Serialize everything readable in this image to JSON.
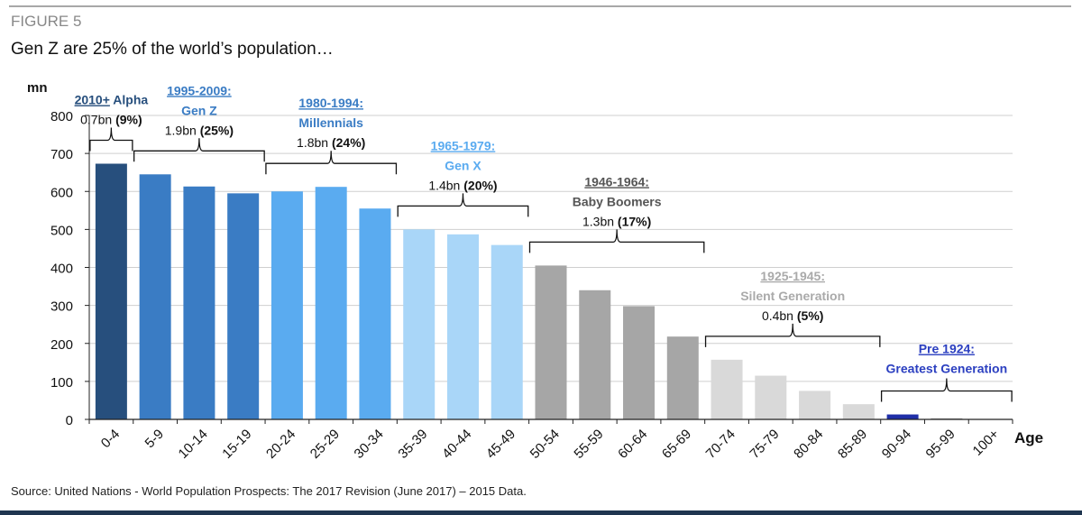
{
  "figure_label": "FIGURE 5",
  "title": "Gen Z are 25% of the world’s population…",
  "source": "Source: United Nations - World Population Prospects: The 2017 Revision (June 2017) – 2015 Data.",
  "chart_data": {
    "type": "bar",
    "ylabel": "mn",
    "xlabel": "Age",
    "ylim": [
      0,
      800
    ],
    "yticks": [
      0,
      100,
      200,
      300,
      400,
      500,
      600,
      700,
      800
    ],
    "grid": true,
    "categories": [
      "0-4",
      "5-9",
      "10-14",
      "15-19",
      "20-24",
      "25-29",
      "30-34",
      "35-39",
      "40-44",
      "45-49",
      "50-54",
      "55-59",
      "60-64",
      "65-69",
      "70-74",
      "75-79",
      "80-84",
      "85-89",
      "90-94",
      "95-99",
      "100+"
    ],
    "values": [
      673,
      645,
      613,
      595,
      600,
      612,
      555,
      500,
      487,
      459,
      405,
      340,
      298,
      218,
      157,
      115,
      75,
      40,
      13,
      3,
      1
    ],
    "bar_colors": [
      "#274f7d",
      "#3a7cc4",
      "#3a7cc4",
      "#3a7cc4",
      "#5aabf0",
      "#5aabf0",
      "#5aabf0",
      "#a9d6f8",
      "#a9d6f8",
      "#a9d6f8",
      "#a6a6a6",
      "#a6a6a6",
      "#a6a6a6",
      "#a6a6a6",
      "#d9d9d9",
      "#d9d9d9",
      "#d9d9d9",
      "#d9d9d9",
      "#1f2fa8",
      "#a6a6a6",
      "#a6a6a6"
    ],
    "groups": [
      {
        "range": "2010+",
        "name": "Alpha",
        "stat": "0.7bn",
        "pct": "(9%)",
        "from": 0,
        "to": 0,
        "color": "#274f7d"
      },
      {
        "range": "1995-2009:",
        "name": "Gen Z",
        "stat": "1.9bn",
        "pct": "(25%)",
        "from": 1,
        "to": 3,
        "color": "#3a7cc4"
      },
      {
        "range": "1980-1994:",
        "name": "Millennials",
        "stat": "1.8bn",
        "pct": "(24%)",
        "from": 4,
        "to": 6,
        "color": "#3a7cc4"
      },
      {
        "range": "1965-1979:",
        "name": "Gen X",
        "stat": "1.4bn",
        "pct": "(20%)",
        "from": 7,
        "to": 9,
        "color": "#5aabf0"
      },
      {
        "range": "1946-1964:",
        "name": "Baby Boomers",
        "stat": "1.3bn",
        "pct": "(17%)",
        "from": 10,
        "to": 13,
        "color": "#555555"
      },
      {
        "range": "1925-1945:",
        "name": "Silent Generation",
        "stat": "0.4bn",
        "pct": "(5%)",
        "from": 14,
        "to": 17,
        "color": "#aaaaaa"
      },
      {
        "range": "Pre 1924:",
        "name": "Greatest Generation",
        "stat": "",
        "pct": "",
        "from": 18,
        "to": 20,
        "color": "#2b3fc0"
      }
    ]
  }
}
